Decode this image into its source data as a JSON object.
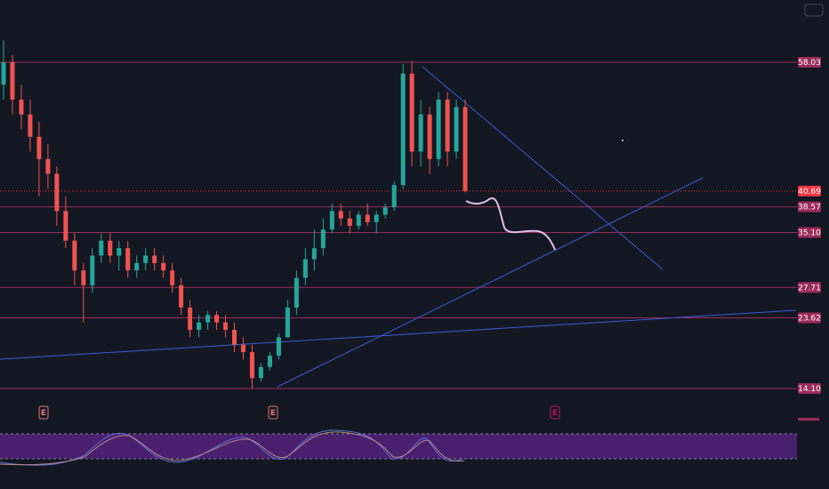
{
  "chart_data": {
    "type": "candlestick",
    "open": [
      55,
      58,
      53,
      51,
      48,
      45,
      43,
      38,
      34,
      30,
      28,
      32,
      34,
      32,
      33,
      30,
      31,
      32,
      31,
      30,
      28,
      25,
      22,
      23,
      24,
      23,
      22,
      20,
      19,
      15.5,
      17,
      18.5,
      21,
      25,
      29,
      31.5,
      33,
      35.5,
      38,
      37,
      36,
      37.5,
      36.5,
      37.5,
      38.5,
      41.5,
      56.5,
      46,
      51,
      45,
      53,
      46,
      52
    ],
    "high": [
      61,
      59,
      55,
      53,
      50,
      47,
      44,
      40,
      35,
      31,
      33,
      35,
      35,
      34,
      34,
      32,
      33,
      33,
      32,
      31,
      29,
      26,
      24,
      24.5,
      24.5,
      24,
      23,
      21,
      20,
      17.5,
      19,
      21.5,
      26,
      30,
      33,
      35.5,
      37,
      39,
      39,
      38,
      38,
      39,
      38,
      39,
      42,
      57.8,
      58.2,
      53,
      52,
      54,
      54,
      53,
      53
    ],
    "low": [
      53,
      51,
      49,
      46,
      40,
      41,
      36,
      33,
      28,
      23,
      27,
      31,
      31,
      30,
      29,
      29,
      30,
      30,
      29,
      27,
      24,
      21,
      21,
      22,
      22,
      21,
      19,
      18,
      14.1,
      15,
      16.5,
      18,
      21,
      24,
      28,
      30,
      32,
      35,
      36,
      35,
      35.5,
      36,
      35,
      37,
      38,
      41,
      44,
      44,
      43,
      44,
      44,
      45,
      40.5
    ],
    "close": [
      58,
      53,
      51,
      48,
      45,
      43,
      38,
      34,
      30,
      28,
      32,
      34,
      32,
      33,
      30,
      31,
      32,
      31,
      30,
      28,
      25,
      22,
      23,
      24,
      23,
      22,
      20,
      19,
      15.5,
      17,
      18.5,
      21,
      25,
      29,
      31.5,
      33,
      35.5,
      38,
      37,
      36,
      37.5,
      36.5,
      37.5,
      38.5,
      41.5,
      56.5,
      46,
      51,
      45,
      53,
      46,
      52,
      40.69
    ],
    "up_color": "#26a69a",
    "down_color": "#ef5350",
    "ylim": [
      8.95,
      66.41
    ],
    "yticks": [
      58.03,
      {
        "value": 38.57,
        "label": "38.57"
      },
      {
        "value": 35.1,
        "label": "35.10"
      },
      27.71,
      23.62,
      {
        "value": 14.1,
        "label": "14.10"
      }
    ],
    "level_color": "#9c2b5a",
    "last_price": 40.69,
    "last_price_color": "#f23645",
    "earnings_markers": [
      "E",
      "E",
      "E"
    ]
  }
}
